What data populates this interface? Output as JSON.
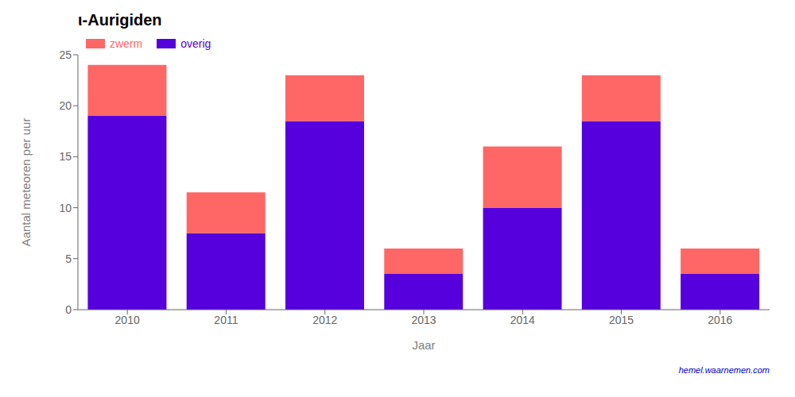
{
  "chart_data": {
    "type": "bar",
    "title": "ι-Aurigiden",
    "xlabel": "Jaar",
    "ylabel": "Aantal meteoren per uur",
    "categories": [
      "2010",
      "2011",
      "2012",
      "2013",
      "2014",
      "2015",
      "2016"
    ],
    "series": [
      {
        "name": "overig",
        "color": "#5500dd",
        "values": [
          19.0,
          7.5,
          18.5,
          3.5,
          10.0,
          18.5,
          3.5
        ]
      },
      {
        "name": "zwerm",
        "color": "#ff6666",
        "values": [
          5.0,
          4.0,
          4.5,
          2.5,
          6.0,
          4.5,
          2.5
        ]
      }
    ],
    "stacked": true,
    "ylim": [
      0,
      25
    ],
    "yticks": [
      0,
      5,
      10,
      15,
      20,
      25
    ],
    "grid": false,
    "legend": "upper left",
    "annotations": [
      {
        "text": "hemel.waarnemen.com",
        "color": "#0000cc"
      }
    ]
  }
}
